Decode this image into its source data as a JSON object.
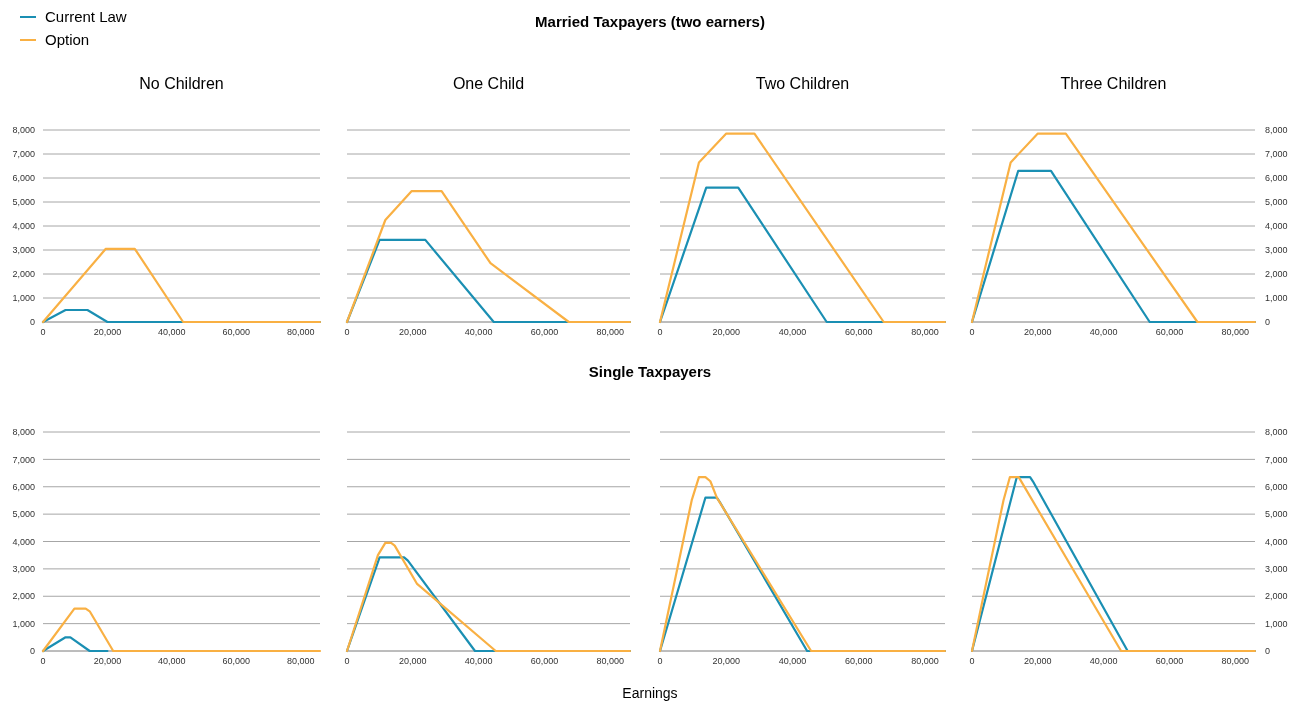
{
  "chart_data": [
    {
      "type": "line",
      "title": "No Children",
      "annotations": [
        "Married Taxpayers (two earners)"
      ],
      "legend": "top left",
      "grid": "y",
      "xlim": [
        0,
        86000
      ],
      "ylim": [
        0,
        8000
      ],
      "xticks": [
        {
          "value": 0,
          "label": "0"
        },
        {
          "value": 20000,
          "label": "20,000"
        },
        {
          "value": 40000,
          "label": "40,000"
        },
        {
          "value": 60000,
          "label": "60,000"
        },
        {
          "value": 80000,
          "label": "80,000"
        }
      ],
      "yticks": [
        {
          "value": 0,
          "label": "0"
        },
        {
          "value": 1000,
          "label": "1,000"
        },
        {
          "value": 2000,
          "label": "2,000"
        },
        {
          "value": 3000,
          "label": "3,000"
        },
        {
          "value": 4000,
          "label": "4,000"
        },
        {
          "value": 5000,
          "label": "5,000"
        },
        {
          "value": 6000,
          "label": "6,000"
        },
        {
          "value": 7000,
          "label": "7,000"
        },
        {
          "value": 8000,
          "label": "8,000"
        }
      ],
      "series": [
        {
          "name": "Current Law",
          "color": "#1a8fb3",
          "x": [
            0,
            7000,
            13800,
            20000,
            86000
          ],
          "values": [
            0,
            500,
            500,
            0,
            0
          ]
        },
        {
          "name": "Option",
          "color": "#f9b043",
          "x": [
            0,
            19500,
            28500,
            43500,
            86000
          ],
          "values": [
            0,
            3050,
            3050,
            0,
            0
          ]
        }
      ]
    },
    {
      "type": "line",
      "title": "One Child",
      "grid": "y",
      "tick_labels": "x",
      "xlim": [
        0,
        86000
      ],
      "ylim": [
        0,
        8000
      ],
      "xticks": [
        {
          "value": 0,
          "label": "0"
        },
        {
          "value": 20000,
          "label": "20,000"
        },
        {
          "value": 40000,
          "label": "40,000"
        },
        {
          "value": 60000,
          "label": "60,000"
        },
        {
          "value": 80000,
          "label": "80,000"
        }
      ],
      "yticks": [
        {
          "value": 0,
          "label": null
        },
        {
          "value": 1000,
          "label": null
        },
        {
          "value": 2000,
          "label": null
        },
        {
          "value": 3000,
          "label": null
        },
        {
          "value": 4000,
          "label": null
        },
        {
          "value": 5000,
          "label": null
        },
        {
          "value": 6000,
          "label": null
        },
        {
          "value": 7000,
          "label": null
        },
        {
          "value": 8000,
          "label": null
        }
      ],
      "series": [
        {
          "color": "#1a8fb3",
          "x": [
            0,
            9900,
            23800,
            44600,
            86000
          ],
          "values": [
            0,
            3420,
            3420,
            0,
            0
          ]
        },
        {
          "color": "#f9b043",
          "x": [
            0,
            11650,
            19600,
            28750,
            43600,
            67400,
            86000
          ],
          "values": [
            0,
            4250,
            5450,
            5450,
            2450,
            0,
            0
          ]
        }
      ]
    },
    {
      "type": "line",
      "title": "Two Children",
      "grid": "y",
      "tick_labels": "x",
      "xlim": [
        0,
        86000
      ],
      "ylim": [
        0,
        8000
      ],
      "xticks": [
        {
          "value": 0,
          "label": "0"
        },
        {
          "value": 20000,
          "label": "20,000"
        },
        {
          "value": 40000,
          "label": "40,000"
        },
        {
          "value": 60000,
          "label": "60,000"
        },
        {
          "value": 80000,
          "label": "80,000"
        }
      ],
      "yticks": [
        {
          "value": 0,
          "label": null
        },
        {
          "value": 1000,
          "label": null
        },
        {
          "value": 2000,
          "label": null
        },
        {
          "value": 3000,
          "label": null
        },
        {
          "value": 4000,
          "label": null
        },
        {
          "value": 5000,
          "label": null
        },
        {
          "value": 6000,
          "label": null
        },
        {
          "value": 7000,
          "label": null
        },
        {
          "value": 8000,
          "label": null
        }
      ],
      "series": [
        {
          "color": "#1a8fb3",
          "x": [
            0,
            13950,
            23600,
            50300,
            86000
          ],
          "values": [
            0,
            5600,
            5600,
            0,
            0
          ]
        },
        {
          "color": "#f9b043",
          "x": [
            0,
            11750,
            20000,
            28500,
            67500,
            86000
          ],
          "values": [
            0,
            6650,
            7850,
            7850,
            0,
            0
          ]
        }
      ]
    },
    {
      "type": "line",
      "title": "Three Children",
      "grid": "y",
      "xlim": [
        0,
        86000
      ],
      "ylim": [
        0,
        8000
      ],
      "xticks": [
        {
          "value": 0,
          "label": "0"
        },
        {
          "value": 20000,
          "label": "20,000"
        },
        {
          "value": 40000,
          "label": "40,000"
        },
        {
          "value": 60000,
          "label": "60,000"
        },
        {
          "value": 80000,
          "label": "80,000"
        }
      ],
      "yticks": [
        {
          "value": 0,
          "label": "0"
        },
        {
          "value": 1000,
          "label": "1,000"
        },
        {
          "value": 2000,
          "label": "2,000"
        },
        {
          "value": 3000,
          "label": "3,000"
        },
        {
          "value": 4000,
          "label": "4,000"
        },
        {
          "value": 5000,
          "label": "5,000"
        },
        {
          "value": 6000,
          "label": "6,000"
        },
        {
          "value": 7000,
          "label": "7,000"
        },
        {
          "value": 8000,
          "label": "8,000"
        }
      ],
      "series": [
        {
          "color": "#1a8fb3",
          "x": [
            0,
            14050,
            24000,
            54000,
            86000
          ],
          "values": [
            0,
            6300,
            6300,
            0,
            0
          ]
        },
        {
          "color": "#f9b043",
          "x": [
            0,
            11750,
            20000,
            28500,
            68500,
            86000
          ],
          "values": [
            0,
            6650,
            7850,
            7850,
            0,
            0
          ]
        }
      ]
    },
    {
      "type": "line",
      "annotations": [
        "Single Taxpayers",
        "Earnings"
      ],
      "grid": "y",
      "xlim": [
        0,
        86000
      ],
      "ylim": [
        0,
        8000
      ],
      "xticks": [
        {
          "value": 0,
          "label": "0"
        },
        {
          "value": 20000,
          "label": "20,000"
        },
        {
          "value": 40000,
          "label": "40,000"
        },
        {
          "value": 60000,
          "label": "60,000"
        },
        {
          "value": 80000,
          "label": "80,000"
        }
      ],
      "yticks": [
        {
          "value": 0,
          "label": "0"
        },
        {
          "value": 1000,
          "label": "1,000"
        },
        {
          "value": 2000,
          "label": "2,000"
        },
        {
          "value": 3000,
          "label": "3,000"
        },
        {
          "value": 4000,
          "label": "4,000"
        },
        {
          "value": 5000,
          "label": "5,000"
        },
        {
          "value": 6000,
          "label": "6,000"
        },
        {
          "value": 7000,
          "label": "7,000"
        },
        {
          "value": 8000,
          "label": "8,000"
        }
      ],
      "series": [
        {
          "color": "#1a8fb3",
          "x": [
            0,
            7000,
            8500,
            14500,
            20000
          ],
          "values": [
            0,
            500,
            500,
            0,
            0
          ]
        },
        {
          "color": "#f9b043",
          "x": [
            0,
            9750,
            13250,
            14500,
            21800,
            86000
          ],
          "values": [
            0,
            1550,
            1550,
            1450,
            0,
            0
          ]
        }
      ]
    },
    {
      "type": "line",
      "grid": "y",
      "tick_labels": "x",
      "xlim": [
        0,
        86000
      ],
      "ylim": [
        0,
        8000
      ],
      "xticks": [
        {
          "value": 0,
          "label": "0"
        },
        {
          "value": 20000,
          "label": "20,000"
        },
        {
          "value": 40000,
          "label": "40,000"
        },
        {
          "value": 60000,
          "label": "60,000"
        },
        {
          "value": 80000,
          "label": "80,000"
        }
      ],
      "yticks": [
        {
          "value": 0,
          "label": null
        },
        {
          "value": 1000,
          "label": null
        },
        {
          "value": 2000,
          "label": null
        },
        {
          "value": 3000,
          "label": null
        },
        {
          "value": 4000,
          "label": null
        },
        {
          "value": 5000,
          "label": null
        },
        {
          "value": 6000,
          "label": null
        },
        {
          "value": 7000,
          "label": null
        },
        {
          "value": 8000,
          "label": null
        }
      ],
      "series": [
        {
          "color": "#1a8fb3",
          "x": [
            0,
            9900,
            17350,
            18500,
            38900,
            86000
          ],
          "values": [
            0,
            3420,
            3420,
            3300,
            0,
            0
          ]
        },
        {
          "color": "#f9b043",
          "x": [
            0,
            9400,
            11650,
            13400,
            14500,
            21300,
            45200,
            86000
          ],
          "values": [
            0,
            3500,
            3950,
            3950,
            3850,
            2450,
            0,
            0
          ]
        }
      ]
    },
    {
      "type": "line",
      "grid": "y",
      "tick_labels": "x",
      "xlim": [
        0,
        86000
      ],
      "ylim": [
        0,
        8000
      ],
      "xticks": [
        {
          "value": 0,
          "label": "0"
        },
        {
          "value": 20000,
          "label": "20,000"
        },
        {
          "value": 40000,
          "label": "40,000"
        },
        {
          "value": 60000,
          "label": "60,000"
        },
        {
          "value": 80000,
          "label": "80,000"
        }
      ],
      "yticks": [
        {
          "value": 0,
          "label": null
        },
        {
          "value": 1000,
          "label": null
        },
        {
          "value": 2000,
          "label": null
        },
        {
          "value": 3000,
          "label": null
        },
        {
          "value": 4000,
          "label": null
        },
        {
          "value": 5000,
          "label": null
        },
        {
          "value": 6000,
          "label": null
        },
        {
          "value": 7000,
          "label": null
        },
        {
          "value": 8000,
          "label": null
        }
      ],
      "series": [
        {
          "color": "#1a8fb3",
          "x": [
            0,
            13700,
            17150,
            18000,
            44400,
            86000
          ],
          "values": [
            0,
            5600,
            5600,
            5450,
            0,
            0
          ]
        },
        {
          "color": "#f9b043",
          "x": [
            0,
            9560,
            11750,
            13700,
            15200,
            17150,
            45600,
            86000
          ],
          "values": [
            0,
            5500,
            6350,
            6350,
            6200,
            5600,
            0,
            0
          ]
        }
      ]
    },
    {
      "type": "line",
      "grid": "y",
      "xlim": [
        0,
        86000
      ],
      "ylim": [
        0,
        8000
      ],
      "xticks": [
        {
          "value": 0,
          "label": "0"
        },
        {
          "value": 20000,
          "label": "20,000"
        },
        {
          "value": 40000,
          "label": "40,000"
        },
        {
          "value": 60000,
          "label": "60,000"
        },
        {
          "value": 80000,
          "label": "80,000"
        }
      ],
      "yticks": [
        {
          "value": 0,
          "label": "0"
        },
        {
          "value": 1000,
          "label": "1,000"
        },
        {
          "value": 2000,
          "label": "2,000"
        },
        {
          "value": 3000,
          "label": "3,000"
        },
        {
          "value": 4000,
          "label": "4,000"
        },
        {
          "value": 5000,
          "label": "5,000"
        },
        {
          "value": 6000,
          "label": "6,000"
        },
        {
          "value": 7000,
          "label": "7,000"
        },
        {
          "value": 8000,
          "label": "8,000"
        }
      ],
      "series": [
        {
          "color": "#1a8fb3",
          "x": [
            0,
            13600,
            17650,
            18500,
            47300,
            86000
          ],
          "values": [
            0,
            6350,
            6350,
            6200,
            0,
            0
          ]
        },
        {
          "color": "#f9b043",
          "x": [
            0,
            9560,
            11500,
            14200,
            45300,
            86000
          ],
          "values": [
            0,
            5500,
            6350,
            6350,
            0,
            0
          ]
        }
      ]
    }
  ]
}
